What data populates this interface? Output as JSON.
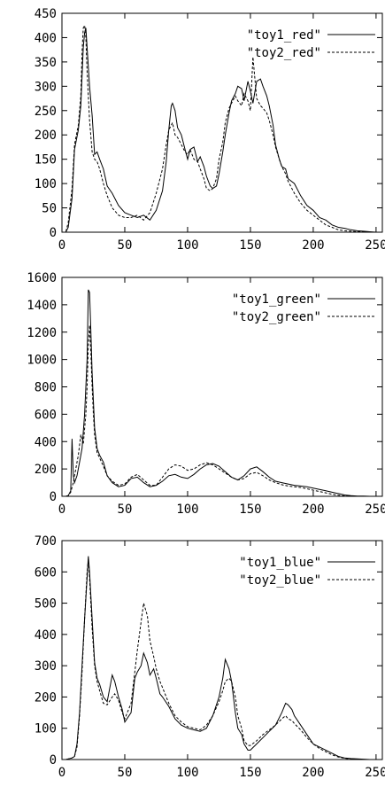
{
  "chart_data": [
    {
      "type": "line",
      "xlim": [
        0,
        255
      ],
      "ylim": [
        0,
        450
      ],
      "xticks": [
        "0",
        "50",
        "100",
        "150",
        "200",
        "250"
      ],
      "yticks": [
        "0",
        "50",
        "100",
        "150",
        "200",
        "250",
        "300",
        "350",
        "400",
        "450"
      ],
      "legend_position": "top-right",
      "grid": false,
      "series": [
        {
          "name": "\"toy1_red\"",
          "style": "solid",
          "color": "#000000",
          "x": [
            0,
            3,
            5,
            8,
            10,
            13,
            15,
            17,
            18,
            19,
            20,
            22,
            24,
            26,
            28,
            30,
            33,
            36,
            40,
            45,
            50,
            55,
            60,
            65,
            70,
            75,
            80,
            83,
            85,
            87,
            88,
            90,
            92,
            95,
            98,
            100,
            102,
            105,
            108,
            110,
            113,
            115,
            118,
            120,
            123,
            125,
            128,
            130,
            133,
            135,
            138,
            140,
            143,
            145,
            148,
            150,
            152,
            155,
            158,
            160,
            163,
            165,
            168,
            170,
            173,
            175,
            178,
            180,
            185,
            190,
            195,
            200,
            205,
            210,
            215,
            220,
            225,
            230,
            235,
            240,
            245,
            250,
            255
          ],
          "y": [
            0,
            0,
            10,
            70,
            170,
            210,
            260,
            380,
            410,
            420,
            380,
            300,
            240,
            160,
            165,
            150,
            130,
            95,
            80,
            55,
            40,
            35,
            30,
            35,
            25,
            45,
            85,
            145,
            210,
            260,
            265,
            250,
            215,
            200,
            170,
            150,
            170,
            175,
            145,
            155,
            135,
            115,
            95,
            90,
            95,
            120,
            165,
            200,
            245,
            270,
            285,
            300,
            295,
            270,
            310,
            290,
            265,
            310,
            315,
            300,
            280,
            260,
            220,
            180,
            150,
            135,
            130,
            110,
            100,
            75,
            55,
            45,
            30,
            25,
            15,
            10,
            8,
            5,
            3,
            2,
            1,
            0,
            0
          ]
        },
        {
          "name": "\"toy2_red\"",
          "style": "dashed",
          "color": "#000000",
          "x": [
            0,
            3,
            5,
            8,
            10,
            13,
            15,
            16,
            17,
            18,
            19,
            20,
            22,
            24,
            26,
            28,
            30,
            33,
            36,
            40,
            45,
            50,
            55,
            60,
            65,
            70,
            75,
            80,
            83,
            85,
            87,
            88,
            90,
            92,
            95,
            98,
            100,
            102,
            105,
            108,
            110,
            113,
            115,
            118,
            120,
            123,
            125,
            128,
            130,
            133,
            135,
            138,
            140,
            143,
            145,
            148,
            150,
            152,
            155,
            158,
            160,
            163,
            165,
            168,
            170,
            173,
            175,
            178,
            180,
            185,
            190,
            195,
            200,
            205,
            210,
            215,
            220,
            225,
            230,
            235,
            240,
            245,
            250,
            255
          ],
          "y": [
            0,
            0,
            20,
            90,
            180,
            220,
            280,
            370,
            420,
            425,
            400,
            330,
            230,
            165,
            150,
            145,
            130,
            100,
            75,
            50,
            35,
            30,
            30,
            35,
            25,
            40,
            80,
            130,
            180,
            210,
            220,
            225,
            200,
            195,
            180,
            165,
            160,
            170,
            150,
            145,
            130,
            110,
            90,
            85,
            90,
            110,
            150,
            185,
            225,
            255,
            265,
            280,
            270,
            260,
            285,
            270,
            250,
            360,
            275,
            260,
            255,
            245,
            230,
            200,
            175,
            150,
            135,
            120,
            105,
            80,
            60,
            45,
            35,
            25,
            15,
            10,
            5,
            3,
            2,
            1,
            1,
            0,
            0,
            0
          ]
        }
      ]
    },
    {
      "type": "line",
      "xlim": [
        0,
        255
      ],
      "ylim": [
        0,
        1600
      ],
      "xticks": [
        "0",
        "50",
        "100",
        "150",
        "200",
        "250"
      ],
      "yticks": [
        "0",
        "200",
        "400",
        "600",
        "800",
        "1000",
        "1200",
        "1400",
        "1600"
      ],
      "legend_position": "top-right",
      "grid": false,
      "series": [
        {
          "name": "\"toy1_green\"",
          "style": "solid",
          "color": "#000000",
          "x": [
            0,
            3,
            5,
            7,
            8,
            9,
            10,
            12,
            14,
            16,
            18,
            20,
            21,
            22,
            23,
            24,
            25,
            26,
            28,
            30,
            33,
            36,
            40,
            45,
            50,
            55,
            60,
            65,
            70,
            75,
            80,
            85,
            90,
            95,
            100,
            105,
            110,
            115,
            120,
            125,
            130,
            135,
            140,
            145,
            150,
            155,
            160,
            165,
            170,
            175,
            180,
            185,
            190,
            195,
            200,
            205,
            210,
            215,
            220,
            225,
            230,
            235,
            240,
            245,
            250,
            255
          ],
          "y": [
            0,
            0,
            5,
            40,
            420,
            150,
            100,
            150,
            250,
            350,
            600,
            1000,
            1510,
            1490,
            1200,
            900,
            700,
            500,
            350,
            300,
            250,
            150,
            100,
            70,
            80,
            130,
            140,
            100,
            70,
            80,
            110,
            150,
            160,
            140,
            130,
            160,
            200,
            230,
            240,
            220,
            180,
            140,
            120,
            150,
            200,
            215,
            180,
            140,
            110,
            100,
            90,
            80,
            75,
            70,
            60,
            50,
            40,
            30,
            20,
            10,
            5,
            2,
            1,
            0,
            0,
            0
          ]
        },
        {
          "name": "\"toy2_green\"",
          "style": "dashed",
          "color": "#000000",
          "x": [
            0,
            3,
            5,
            7,
            9,
            11,
            13,
            15,
            17,
            19,
            20,
            21,
            22,
            23,
            24,
            25,
            26,
            28,
            30,
            33,
            36,
            40,
            45,
            50,
            55,
            60,
            65,
            70,
            75,
            80,
            85,
            90,
            95,
            100,
            105,
            110,
            115,
            120,
            125,
            130,
            135,
            140,
            145,
            150,
            155,
            160,
            165,
            170,
            175,
            180,
            185,
            190,
            195,
            200,
            205,
            210,
            215,
            220,
            225,
            230,
            235,
            240,
            245,
            250,
            255
          ],
          "y": [
            0,
            0,
            5,
            30,
            100,
            200,
            300,
            450,
            380,
            600,
            800,
            1100,
            1250,
            1050,
            800,
            600,
            450,
            320,
            280,
            220,
            150,
            110,
            80,
            90,
            140,
            160,
            120,
            80,
            80,
            140,
            200,
            230,
            220,
            190,
            200,
            230,
            245,
            230,
            200,
            170,
            140,
            120,
            130,
            165,
            175,
            150,
            120,
            100,
            85,
            75,
            70,
            65,
            55,
            45,
            35,
            25,
            15,
            8,
            3,
            1,
            0,
            0,
            0,
            0,
            0
          ]
        }
      ]
    },
    {
      "type": "line",
      "xlim": [
        0,
        255
      ],
      "ylim": [
        0,
        700
      ],
      "xticks": [
        "0",
        "50",
        "100",
        "150",
        "200",
        "250"
      ],
      "yticks": [
        "0",
        "100",
        "200",
        "300",
        "400",
        "500",
        "600",
        "700"
      ],
      "legend_position": "top-right",
      "grid": false,
      "series": [
        {
          "name": "\"toy1_blue\"",
          "style": "solid",
          "color": "#000000",
          "x": [
            0,
            3,
            5,
            8,
            10,
            12,
            14,
            16,
            18,
            20,
            21,
            22,
            24,
            26,
            28,
            30,
            33,
            36,
            40,
            42,
            45,
            48,
            50,
            55,
            58,
            60,
            63,
            65,
            68,
            70,
            73,
            75,
            78,
            80,
            85,
            90,
            95,
            100,
            105,
            110,
            115,
            120,
            125,
            128,
            130,
            133,
            135,
            138,
            140,
            143,
            145,
            148,
            150,
            155,
            160,
            165,
            170,
            175,
            178,
            180,
            183,
            185,
            190,
            195,
            200,
            205,
            210,
            215,
            220,
            225,
            230,
            235,
            240,
            245,
            250,
            255
          ],
          "y": [
            0,
            0,
            2,
            5,
            10,
            50,
            150,
            300,
            450,
            580,
            650,
            600,
            450,
            310,
            260,
            240,
            200,
            185,
            270,
            250,
            200,
            160,
            120,
            150,
            260,
            280,
            300,
            340,
            310,
            270,
            290,
            260,
            210,
            200,
            170,
            130,
            110,
            100,
            95,
            90,
            100,
            140,
            200,
            260,
            320,
            290,
            250,
            150,
            100,
            80,
            50,
            30,
            30,
            50,
            70,
            90,
            110,
            150,
            180,
            175,
            160,
            140,
            110,
            80,
            50,
            40,
            30,
            20,
            10,
            5,
            3,
            2,
            1,
            0,
            0,
            0
          ]
        },
        {
          "name": "\"toy2_blue\"",
          "style": "dashed",
          "color": "#000000",
          "x": [
            0,
            3,
            5,
            8,
            10,
            12,
            14,
            16,
            18,
            20,
            21,
            22,
            24,
            26,
            28,
            30,
            33,
            36,
            40,
            42,
            45,
            48,
            50,
            55,
            58,
            60,
            63,
            65,
            68,
            70,
            73,
            75,
            78,
            80,
            85,
            90,
            95,
            100,
            105,
            110,
            115,
            120,
            125,
            128,
            130,
            133,
            135,
            138,
            140,
            143,
            145,
            148,
            150,
            155,
            160,
            165,
            170,
            175,
            178,
            180,
            183,
            185,
            190,
            195,
            200,
            205,
            210,
            215,
            220,
            225,
            230,
            235,
            240,
            245,
            250,
            255
          ],
          "y": [
            0,
            0,
            2,
            5,
            10,
            40,
            140,
            280,
            450,
            600,
            640,
            580,
            420,
            300,
            250,
            220,
            180,
            175,
            200,
            210,
            190,
            150,
            130,
            180,
            280,
            350,
            440,
            500,
            460,
            380,
            330,
            290,
            250,
            230,
            180,
            140,
            120,
            105,
            100,
            95,
            110,
            140,
            185,
            220,
            250,
            260,
            250,
            200,
            140,
            100,
            60,
            45,
            45,
            60,
            80,
            95,
            110,
            130,
            140,
            130,
            125,
            115,
            95,
            70,
            50,
            35,
            25,
            15,
            8,
            4,
            2,
            1,
            0,
            0,
            0,
            0
          ]
        }
      ]
    }
  ]
}
